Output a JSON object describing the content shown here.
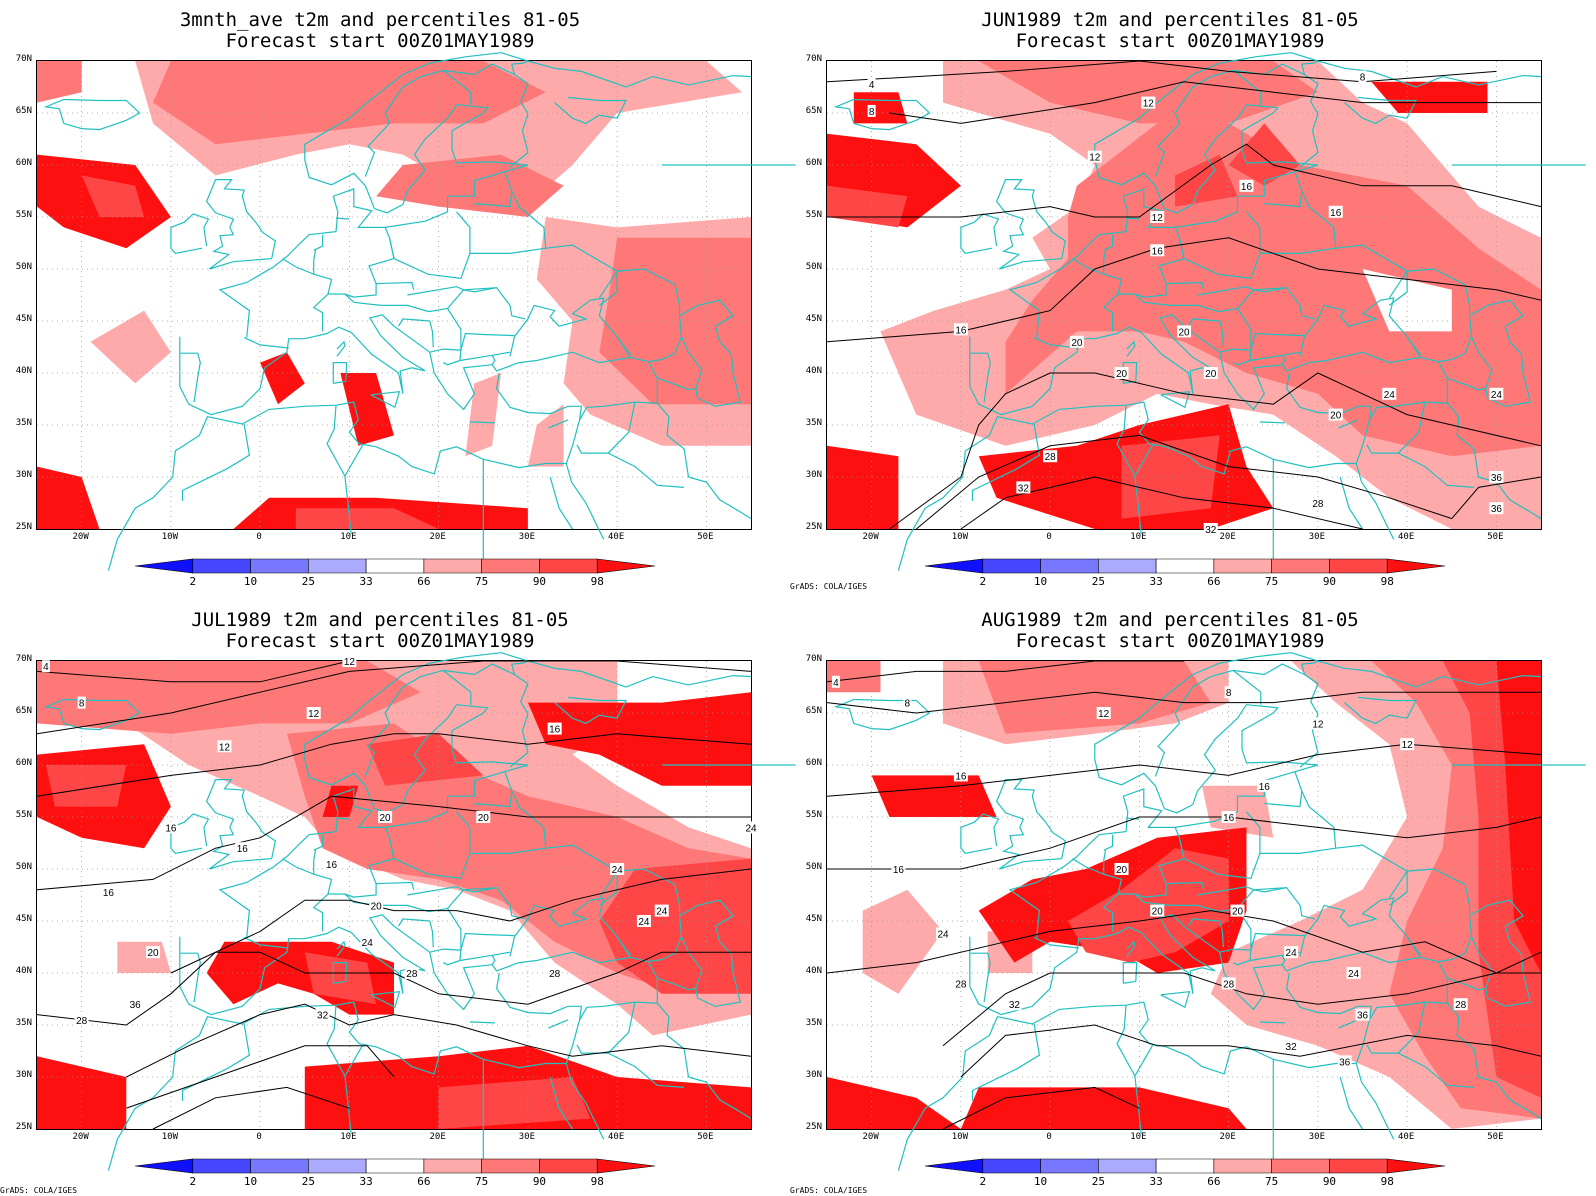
{
  "panels": [
    {
      "title_line1": "3mnth_ave t2m and percentiles 81-05",
      "title_line2": "Forecast start 00Z01MAY1989",
      "credit": ""
    },
    {
      "title_line1": "JUN1989 t2m and percentiles 81-05",
      "title_line2": "Forecast start 00Z01MAY1989",
      "credit": "GrADS: COLA/IGES"
    },
    {
      "title_line1": "JUL1989 t2m and percentiles 81-05",
      "title_line2": "Forecast start 00Z01MAY1989",
      "credit": "GrADS: COLA/IGES"
    },
    {
      "title_line1": "AUG1989 t2m and percentiles 81-05",
      "title_line2": "Forecast start 00Z01MAY1989",
      "credit": "GrADS: COLA/IGES"
    }
  ],
  "lat_labels": [
    "70N",
    "65N",
    "60N",
    "55N",
    "50N",
    "45N",
    "40N",
    "35N",
    "30N",
    "25N"
  ],
  "lon_labels": [
    "20W",
    "10W",
    "0",
    "10E",
    "20E",
    "30E",
    "40E",
    "50E"
  ],
  "colorbar": {
    "labels": [
      "2",
      "10",
      "25",
      "33",
      "66",
      "75",
      "90",
      "98"
    ],
    "colors": [
      "#1010ff",
      "#4646ff",
      "#7878ff",
      "#aaaaff",
      "#ffffff",
      "#ffaaaa",
      "#ff7878",
      "#ff4646",
      "#ff1010"
    ]
  },
  "contour_labels": {
    "jun": [
      "4",
      "8",
      "8",
      "12",
      "12",
      "12",
      "16",
      "16",
      "16",
      "16",
      "20",
      "20",
      "20",
      "20",
      "20",
      "24",
      "24",
      "28",
      "28",
      "32",
      "32",
      "36",
      "36"
    ],
    "jul": [
      "4",
      "8",
      "12",
      "12",
      "12",
      "16",
      "16",
      "16",
      "16",
      "16",
      "20",
      "20",
      "20",
      "20",
      "24",
      "24",
      "24",
      "24",
      "24",
      "28",
      "28",
      "32",
      "36",
      "28"
    ],
    "aug": [
      "4",
      "8",
      "8",
      "12",
      "12",
      "12",
      "16",
      "16",
      "16",
      "16",
      "20",
      "20",
      "20",
      "24",
      "24",
      "24",
      "28",
      "28",
      "32",
      "36",
      "32",
      "36",
      "28"
    ]
  },
  "colors": {
    "coast": "#20c0c0",
    "contour": "#000000",
    "grid": "#999999"
  }
}
